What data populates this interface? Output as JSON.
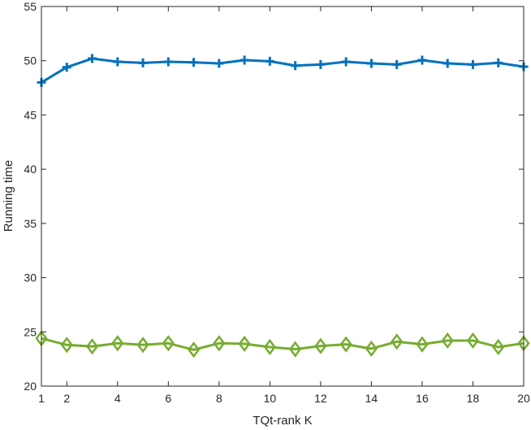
{
  "chart_data": {
    "type": "line",
    "xlabel": "TQt-rank K",
    "ylabel": "Running time",
    "xlim": [
      1,
      20
    ],
    "ylim": [
      20,
      55
    ],
    "xticks": [
      1,
      2,
      4,
      6,
      8,
      10,
      12,
      14,
      16,
      18,
      20
    ],
    "yticks": [
      20,
      25,
      30,
      35,
      40,
      45,
      50,
      55
    ],
    "grid": false,
    "x": [
      1,
      2,
      3,
      4,
      5,
      6,
      7,
      8,
      9,
      10,
      11,
      12,
      13,
      14,
      15,
      16,
      17,
      18,
      19,
      20
    ],
    "series": [
      {
        "color": "#0072BD",
        "marker": "plus",
        "values": [
          48.0,
          49.4,
          50.2,
          49.9,
          49.8,
          49.9,
          49.85,
          49.75,
          50.05,
          49.95,
          49.55,
          49.65,
          49.9,
          49.75,
          49.65,
          50.05,
          49.75,
          49.65,
          49.8,
          49.45
        ]
      },
      {
        "color": "#77AC30",
        "marker": "diamond",
        "values": [
          24.4,
          23.8,
          23.65,
          23.95,
          23.8,
          23.95,
          23.35,
          23.95,
          23.9,
          23.6,
          23.4,
          23.7,
          23.85,
          23.45,
          24.1,
          23.85,
          24.2,
          24.2,
          23.6,
          23.95
        ]
      }
    ]
  }
}
